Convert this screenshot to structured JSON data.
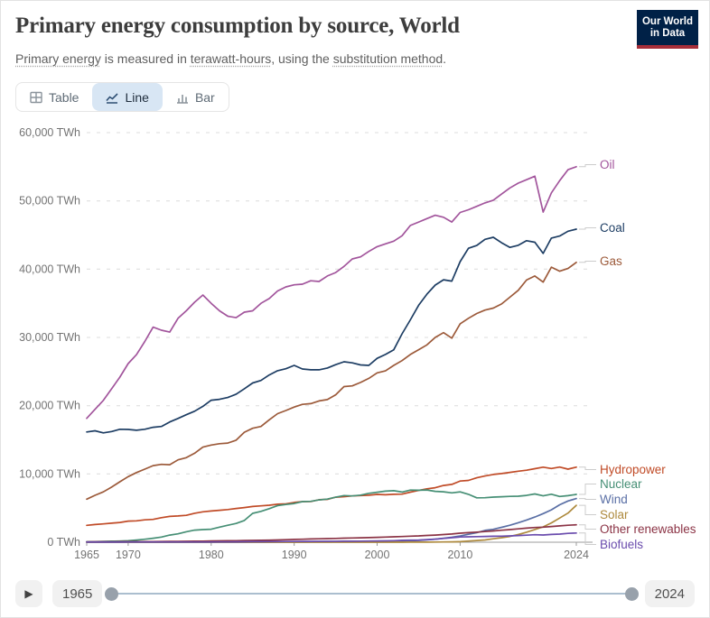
{
  "header": {
    "title": "Primary energy consumption by source, World",
    "subtitle": {
      "p1": "Primary energy",
      "p2": " is measured in ",
      "p3": "terawatt-hours",
      "p4": ", using the ",
      "p5": "substitution method",
      "p6": "."
    },
    "logo": {
      "line1": "Our World",
      "line2": "in Data",
      "bg_color": "#002147",
      "accent_color": "#a62e39"
    }
  },
  "tabs": [
    {
      "label": "Table",
      "icon": "table-icon",
      "active": false
    },
    {
      "label": "Line",
      "icon": "line-chart-icon",
      "active": true
    },
    {
      "label": "Bar",
      "icon": "bar-chart-icon",
      "active": false
    }
  ],
  "timeline": {
    "play_icon": "▶",
    "start_label": "1965",
    "end_label": "2024"
  },
  "chart_data": {
    "type": "line",
    "title": "Primary energy consumption by source, World",
    "unit": "TWh",
    "xlim": [
      1965,
      2024
    ],
    "ylim": [
      0,
      60000
    ],
    "grid": "horizontal-dashed",
    "legend_position": "right-end-labels",
    "x": [
      1965,
      1966,
      1967,
      1968,
      1969,
      1970,
      1971,
      1972,
      1973,
      1974,
      1975,
      1976,
      1977,
      1978,
      1979,
      1980,
      1981,
      1982,
      1983,
      1984,
      1985,
      1986,
      1987,
      1988,
      1989,
      1990,
      1991,
      1992,
      1993,
      1994,
      1995,
      1996,
      1997,
      1998,
      1999,
      2000,
      2001,
      2002,
      2003,
      2004,
      2005,
      2006,
      2007,
      2008,
      2009,
      2010,
      2011,
      2012,
      2013,
      2014,
      2015,
      2016,
      2017,
      2018,
      2019,
      2020,
      2021,
      2022,
      2023,
      2024
    ],
    "x_ticks": [
      {
        "value": 1965,
        "label": "1965"
      },
      {
        "value": 1970,
        "label": "1970"
      },
      {
        "value": 1980,
        "label": "1980"
      },
      {
        "value": 1990,
        "label": "1990"
      },
      {
        "value": 2000,
        "label": "2000"
      },
      {
        "value": 2010,
        "label": "2010"
      },
      {
        "value": 2024,
        "label": "2024"
      }
    ],
    "y_ticks": [
      {
        "value": 0,
        "label": "0 TWh"
      },
      {
        "value": 10000,
        "label": "10,000 TWh"
      },
      {
        "value": 20000,
        "label": "20,000 TWh"
      },
      {
        "value": 30000,
        "label": "30,000 TWh"
      },
      {
        "value": 40000,
        "label": "40,000 TWh"
      },
      {
        "value": 50000,
        "label": "50,000 TWh"
      },
      {
        "value": 60000,
        "label": "60,000 TWh"
      }
    ],
    "series": [
      {
        "id": "oil",
        "name": "Oil",
        "color": "#A2559C",
        "label_y": 60,
        "values": [
          18146,
          19465,
          20772,
          22483,
          24189,
          26168,
          27471,
          29409,
          31508,
          31056,
          30775,
          32801,
          33896,
          35158,
          36212,
          35000,
          33900,
          33100,
          32900,
          33700,
          33900,
          35000,
          35700,
          36800,
          37400,
          37700,
          37800,
          38300,
          38200,
          39000,
          39500,
          40400,
          41500,
          41800,
          42600,
          43300,
          43700,
          44100,
          44900,
          46400,
          46900,
          47400,
          47900,
          47600,
          46900,
          48300,
          48700,
          49200,
          49700,
          50100,
          51000,
          51900,
          52600,
          53100,
          53619,
          48360,
          51170,
          52970,
          54564,
          55000
        ]
      },
      {
        "id": "coal",
        "name": "Coal",
        "color": "#1D3D63",
        "label_y": 130,
        "values": [
          16151,
          16316,
          16024,
          16220,
          16549,
          16520,
          16407,
          16550,
          16840,
          16960,
          17613,
          18127,
          18672,
          19185,
          19905,
          20808,
          20936,
          21192,
          21683,
          22481,
          23322,
          23700,
          24497,
          25127,
          25409,
          25901,
          25375,
          25262,
          25260,
          25524,
          26003,
          26436,
          26278,
          25966,
          25899,
          26940,
          27500,
          28190,
          30530,
          32580,
          34720,
          36330,
          37670,
          38440,
          38250,
          41100,
          43056,
          43470,
          44360,
          44670,
          43860,
          43190,
          43500,
          44170,
          43940,
          42300,
          44550,
          44860,
          45550,
          45860
        ]
      },
      {
        "id": "gas",
        "name": "Gas",
        "color": "#9C5A3A",
        "label_y": 167,
        "values": [
          6304,
          6871,
          7377,
          8069,
          8857,
          9614,
          10208,
          10707,
          11219,
          11409,
          11350,
          12067,
          12384,
          13033,
          13923,
          14237,
          14430,
          14520,
          14944,
          16104,
          16691,
          16962,
          17930,
          18838,
          19300,
          19800,
          20200,
          20300,
          20700,
          20900,
          21600,
          22800,
          22900,
          23400,
          24000,
          24800,
          25100,
          25900,
          26600,
          27500,
          28200,
          28900,
          30000,
          30700,
          29900,
          32000,
          32800,
          33500,
          34000,
          34300,
          34900,
          35900,
          36900,
          38400,
          39000,
          38100,
          40300,
          39700,
          40100,
          41000
        ]
      },
      {
        "id": "hydropower",
        "name": "Hydropower",
        "color": "#C04B27",
        "label_y": 398,
        "values": [
          2473,
          2589,
          2689,
          2789,
          2890,
          3095,
          3130,
          3280,
          3350,
          3600,
          3780,
          3850,
          3940,
          4240,
          4450,
          4577,
          4680,
          4790,
          4940,
          5070,
          5232,
          5330,
          5420,
          5560,
          5620,
          5829,
          5950,
          5960,
          6220,
          6280,
          6590,
          6680,
          6780,
          6830,
          6890,
          7000,
          6950,
          7020,
          7050,
          7340,
          7580,
          7830,
          7980,
          8310,
          8470,
          8960,
          9050,
          9440,
          9700,
          9920,
          10060,
          10230,
          10400,
          10550,
          10770,
          11000,
          10800,
          11010,
          10700,
          11000
        ]
      },
      {
        "id": "nuclear",
        "name": "Nuclear",
        "color": "#468F75",
        "label_y": 414,
        "values": [
          72,
          98,
          116,
          148,
          175,
          224,
          311,
          432,
          579,
          756,
          1049,
          1228,
          1528,
          1776,
          1847,
          1903,
          2203,
          2480,
          2752,
          3183,
          4225,
          4525,
          4922,
          5366,
          5519,
          5676,
          5948,
          5993,
          6199,
          6316,
          6590,
          6829,
          6782,
          6899,
          7162,
          7323,
          7481,
          7552,
          7351,
          7636,
          7608,
          7654,
          7452,
          7382,
          7232,
          7374,
          7022,
          6501,
          6513,
          6607,
          6656,
          6715,
          6735,
          6856,
          7073,
          6789,
          7031,
          6702,
          6824,
          7000
        ]
      },
      {
        "id": "wind",
        "name": "Wind",
        "color": "#5A6FA5",
        "label_y": 431,
        "values": [
          0,
          0,
          0,
          0,
          0,
          0,
          0,
          0,
          0,
          0,
          0,
          0,
          0,
          0,
          0,
          0,
          1,
          1,
          2,
          2,
          3,
          4,
          6,
          8,
          11,
          14,
          18,
          21,
          25,
          31,
          41,
          49,
          58,
          69,
          77,
          83,
          98,
          135,
          165,
          219,
          270,
          345,
          445,
          577,
          721,
          912,
          1166,
          1407,
          1727,
          1895,
          2175,
          2480,
          2852,
          3254,
          3682,
          4191,
          4740,
          5488,
          6040,
          6400
        ]
      },
      {
        "id": "solar",
        "name": "Solar",
        "color": "#AE8A3D",
        "label_y": 448,
        "values": [
          0,
          0,
          0,
          0,
          0,
          0,
          0,
          0,
          0,
          0,
          0,
          0,
          0,
          0,
          0,
          0,
          0,
          0,
          0,
          0,
          0,
          0,
          0,
          0,
          0,
          1,
          1,
          1,
          1,
          1,
          2,
          2,
          2,
          2,
          3,
          3,
          4,
          5,
          6,
          8,
          11,
          15,
          20,
          34,
          56,
          85,
          166,
          252,
          334,
          497,
          664,
          852,
          1120,
          1470,
          1857,
          2243,
          2822,
          3540,
          4264,
          5400
        ]
      },
      {
        "id": "other-renewables",
        "name": "Other renewables",
        "color": "#8B3345",
        "label_y": 464,
        "values": [
          56,
          60,
          64,
          68,
          73,
          80,
          86,
          92,
          99,
          107,
          115,
          124,
          133,
          143,
          154,
          184,
          198,
          213,
          229,
          246,
          264,
          284,
          305,
          328,
          368,
          410,
          440,
          470,
          500,
          530,
          560,
          590,
          620,
          650,
          680,
          717,
          750,
          790,
          830,
          880,
          930,
          990,
          1050,
          1120,
          1200,
          1322,
          1400,
          1480,
          1560,
          1650,
          1760,
          1850,
          1950,
          2060,
          2150,
          2210,
          2300,
          2390,
          2480,
          2550
        ]
      },
      {
        "id": "biofuels",
        "name": "Biofuels",
        "color": "#6A4CAD",
        "label_y": 481,
        "values": [
          17,
          18,
          18,
          19,
          19,
          20,
          21,
          21,
          22,
          23,
          24,
          25,
          26,
          27,
          28,
          30,
          37,
          45,
          55,
          67,
          80,
          85,
          90,
          95,
          100,
          110,
          115,
          120,
          126,
          132,
          138,
          144,
          151,
          158,
          166,
          187,
          200,
          230,
          280,
          300,
          320,
          380,
          450,
          560,
          660,
          760,
          790,
          820,
          850,
          870,
          890,
          930,
          980,
          1030,
          1100,
          1060,
          1140,
          1190,
          1300,
          1350
        ]
      }
    ]
  }
}
